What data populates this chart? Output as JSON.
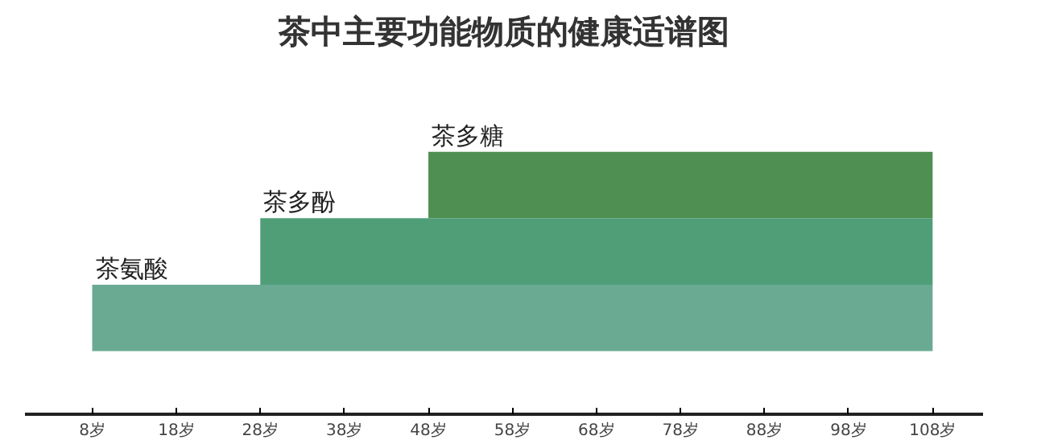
{
  "chart_data": {
    "type": "bar",
    "title": "茶中主要功能物质的健康适谱图",
    "orientation": "horizontal",
    "categories": [
      null,
      null,
      null
    ],
    "annotations": [
      "茶多糖",
      "茶多酚",
      "茶氨酸"
    ],
    "base": [
      48,
      28,
      8
    ],
    "values": [
      60,
      80,
      100
    ],
    "colors": [
      "#4f8f52",
      "#4f9e78",
      "#6aaa93"
    ],
    "xlim": [
      0,
      114
    ],
    "xticks": [
      {
        "value": 8,
        "label": "8岁"
      },
      {
        "value": 18,
        "label": "18岁"
      },
      {
        "value": 28,
        "label": "28岁"
      },
      {
        "value": 38,
        "label": "38岁"
      },
      {
        "value": 48,
        "label": "48岁"
      },
      {
        "value": 58,
        "label": "58岁"
      },
      {
        "value": 68,
        "label": "68岁"
      },
      {
        "value": 78,
        "label": "78岁"
      },
      {
        "value": 88,
        "label": "88岁"
      },
      {
        "value": 98,
        "label": "98岁"
      },
      {
        "value": 108,
        "label": "108岁"
      }
    ]
  }
}
